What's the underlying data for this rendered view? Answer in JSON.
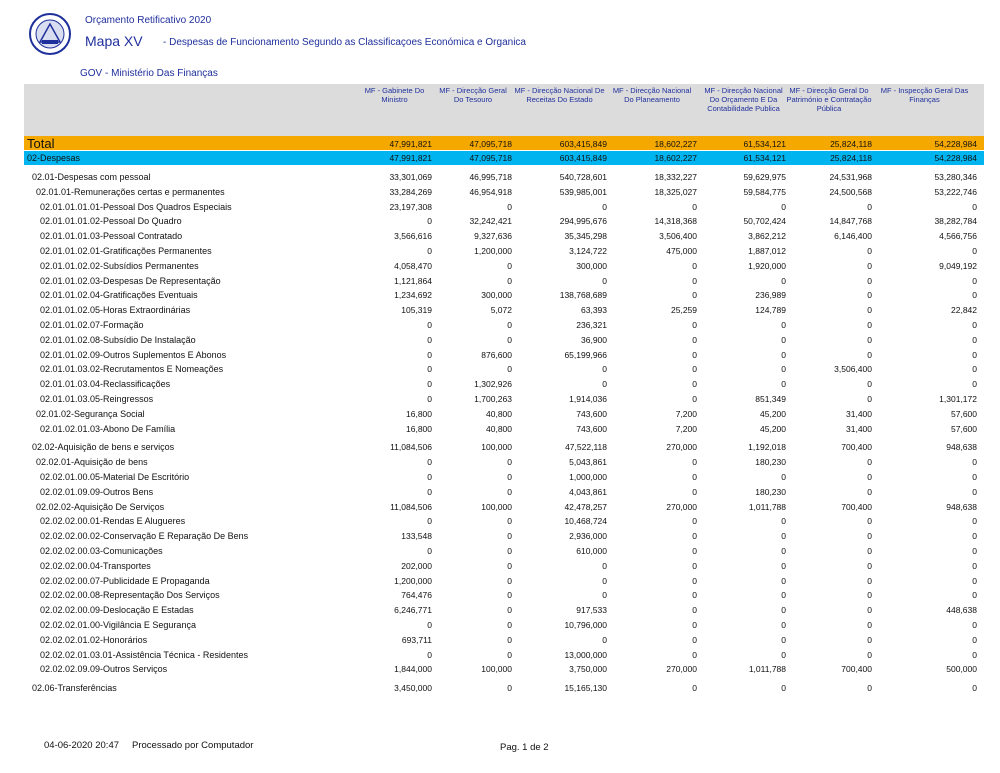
{
  "header": {
    "subtitle": "Orçamento Retificativo 2020",
    "title": "Mapa XV",
    "description": "- Despesas de Funcionamento Segundo as Classificaçoes Económica e Organica",
    "organization": "GOV - Ministério Das Finanças"
  },
  "table": {
    "columns": [
      "MF - Gabinete Do Ministro",
      "MF - Direcção Geral Do Tesouro",
      "MF - Direcção Nacional De Receitas Do Estado",
      "MF - Direcção Nacional Do Planeamento",
      "MF - Direcção Nacional Do Orçamento E Da Contabilidade Publica",
      "MF - Direcção Geral Do Património e Contratação Pública",
      "MF - Inspecção Geral Das Finanças"
    ],
    "total": {
      "label": "Total",
      "values": [
        "47,991,821",
        "47,095,718",
        "603,415,849",
        "18,602,227",
        "61,534,121",
        "25,824,118",
        "54,228,984"
      ]
    },
    "group": {
      "label": "02-Despesas",
      "values": [
        "47,991,821",
        "47,095,718",
        "603,415,849",
        "18,602,227",
        "61,534,121",
        "25,824,118",
        "54,228,984"
      ]
    },
    "rows": [
      {
        "label": "02.01-Despesas com pessoal",
        "values": [
          "33,301,069",
          "46,995,718",
          "540,728,601",
          "18,332,227",
          "59,629,975",
          "24,531,968",
          "53,280,346"
        ]
      },
      {
        "label": "02.01.01-Remunerações certas e permanentes",
        "values": [
          "33,284,269",
          "46,954,918",
          "539,985,001",
          "18,325,027",
          "59,584,775",
          "24,500,568",
          "53,222,746"
        ]
      },
      {
        "label": "02.01.01.01.01-Pessoal Dos Quadros Especiais",
        "values": [
          "23,197,308",
          "0",
          "0",
          "0",
          "0",
          "0",
          "0"
        ]
      },
      {
        "label": "02.01.01.01.02-Pessoal Do Quadro",
        "values": [
          "0",
          "32,242,421",
          "294,995,676",
          "14,318,368",
          "50,702,424",
          "14,847,768",
          "38,282,784"
        ]
      },
      {
        "label": "02.01.01.01.03-Pessoal Contratado",
        "values": [
          "3,566,616",
          "9,327,636",
          "35,345,298",
          "3,506,400",
          "3,862,212",
          "6,146,400",
          "4,566,756"
        ]
      },
      {
        "label": "02.01.01.02.01-Gratificações Permanentes",
        "values": [
          "0",
          "1,200,000",
          "3,124,722",
          "475,000",
          "1,887,012",
          "0",
          "0"
        ]
      },
      {
        "label": "02.01.01.02.02-Subsídios Permanentes",
        "values": [
          "4,058,470",
          "0",
          "300,000",
          "0",
          "1,920,000",
          "0",
          "9,049,192"
        ]
      },
      {
        "label": "02.01.01.02.03-Despesas De Representação",
        "values": [
          "1,121,864",
          "0",
          "0",
          "0",
          "0",
          "0",
          "0"
        ]
      },
      {
        "label": "02.01.01.02.04-Gratificações Eventuais",
        "values": [
          "1,234,692",
          "300,000",
          "138,768,689",
          "0",
          "236,989",
          "0",
          "0"
        ]
      },
      {
        "label": "02.01.01.02.05-Horas Extraordinárias",
        "values": [
          "105,319",
          "5,072",
          "63,393",
          "25,259",
          "124,789",
          "0",
          "22,842"
        ]
      },
      {
        "label": "02.01.01.02.07-Formação",
        "values": [
          "0",
          "0",
          "236,321",
          "0",
          "0",
          "0",
          "0"
        ]
      },
      {
        "label": "02.01.01.02.08-Subsídio De Instalação",
        "values": [
          "0",
          "0",
          "36,900",
          "0",
          "0",
          "0",
          "0"
        ]
      },
      {
        "label": "02.01.01.02.09-Outros Suplementos E Abonos",
        "values": [
          "0",
          "876,600",
          "65,199,966",
          "0",
          "0",
          "0",
          "0"
        ]
      },
      {
        "label": "02.01.01.03.02-Recrutamentos E Nomeações",
        "values": [
          "0",
          "0",
          "0",
          "0",
          "0",
          "3,506,400",
          "0"
        ]
      },
      {
        "label": "02.01.01.03.04-Reclassificações",
        "values": [
          "0",
          "1,302,926",
          "0",
          "0",
          "0",
          "0",
          "0"
        ]
      },
      {
        "label": "02.01.01.03.05-Reingressos",
        "values": [
          "0",
          "1,700,263",
          "1,914,036",
          "0",
          "851,349",
          "0",
          "1,301,172"
        ]
      },
      {
        "label": "02.01.02-Segurança Social",
        "values": [
          "16,800",
          "40,800",
          "743,600",
          "7,200",
          "45,200",
          "31,400",
          "57,600"
        ]
      },
      {
        "label": "02.01.02.01.03-Abono De Família",
        "values": [
          "16,800",
          "40,800",
          "743,600",
          "7,200",
          "45,200",
          "31,400",
          "57,600"
        ]
      },
      {
        "label": "02.02-Aquisição de bens e serviços",
        "values": [
          "11,084,506",
          "100,000",
          "47,522,118",
          "270,000",
          "1,192,018",
          "700,400",
          "948,638"
        ]
      },
      {
        "label": "02.02.01-Aquisição de bens",
        "values": [
          "0",
          "0",
          "5,043,861",
          "0",
          "180,230",
          "0",
          "0"
        ]
      },
      {
        "label": "02.02.01.00.05-Material De Escritório",
        "values": [
          "0",
          "0",
          "1,000,000",
          "0",
          "0",
          "0",
          "0"
        ]
      },
      {
        "label": "02.02.01.09.09-Outros Bens",
        "values": [
          "0",
          "0",
          "4,043,861",
          "0",
          "180,230",
          "0",
          "0"
        ]
      },
      {
        "label": "02.02.02-Aquisição De Serviços",
        "values": [
          "11,084,506",
          "100,000",
          "42,478,257",
          "270,000",
          "1,011,788",
          "700,400",
          "948,638"
        ]
      },
      {
        "label": "02.02.02.00.01-Rendas E Alugueres",
        "values": [
          "0",
          "0",
          "10,468,724",
          "0",
          "0",
          "0",
          "0"
        ]
      },
      {
        "label": "02.02.02.00.02-Conservação E Reparação De Bens",
        "values": [
          "133,548",
          "0",
          "2,936,000",
          "0",
          "0",
          "0",
          "0"
        ]
      },
      {
        "label": "02.02.02.00.03-Comunicações",
        "values": [
          "0",
          "0",
          "610,000",
          "0",
          "0",
          "0",
          "0"
        ]
      },
      {
        "label": "02.02.02.00.04-Transportes",
        "values": [
          "202,000",
          "0",
          "0",
          "0",
          "0",
          "0",
          "0"
        ]
      },
      {
        "label": "02.02.02.00.07-Publicidade E Propaganda",
        "values": [
          "1,200,000",
          "0",
          "0",
          "0",
          "0",
          "0",
          "0"
        ]
      },
      {
        "label": "02.02.02.00.08-Representação Dos Serviços",
        "values": [
          "764,476",
          "0",
          "0",
          "0",
          "0",
          "0",
          "0"
        ]
      },
      {
        "label": "02.02.02.00.09-Deslocação E Estadas",
        "values": [
          "6,246,771",
          "0",
          "917,533",
          "0",
          "0",
          "0",
          "448,638"
        ]
      },
      {
        "label": "02.02.02.01.00-Vigilância E Segurança",
        "values": [
          "0",
          "0",
          "10,796,000",
          "0",
          "0",
          "0",
          "0"
        ]
      },
      {
        "label": "02.02.02.01.02-Honorários",
        "values": [
          "693,711",
          "0",
          "0",
          "0",
          "0",
          "0",
          "0"
        ]
      },
      {
        "label": "02.02.02.01.03.01-Assistência Técnica - Residentes",
        "values": [
          "0",
          "0",
          "13,000,000",
          "0",
          "0",
          "0",
          "0"
        ]
      },
      {
        "label": "02.02.02.09.09-Outros Serviços",
        "values": [
          "1,844,000",
          "100,000",
          "3,750,000",
          "270,000",
          "1,011,788",
          "700,400",
          "500,000"
        ]
      },
      {
        "label": "02.06-Transferências",
        "values": [
          "3,450,000",
          "0",
          "15,165,130",
          "0",
          "0",
          "0",
          "0"
        ]
      }
    ]
  },
  "footer": {
    "date": "04-06-2020 20:47",
    "processed": "Processado por Computador",
    "page": "Pag. 1 de 2"
  }
}
